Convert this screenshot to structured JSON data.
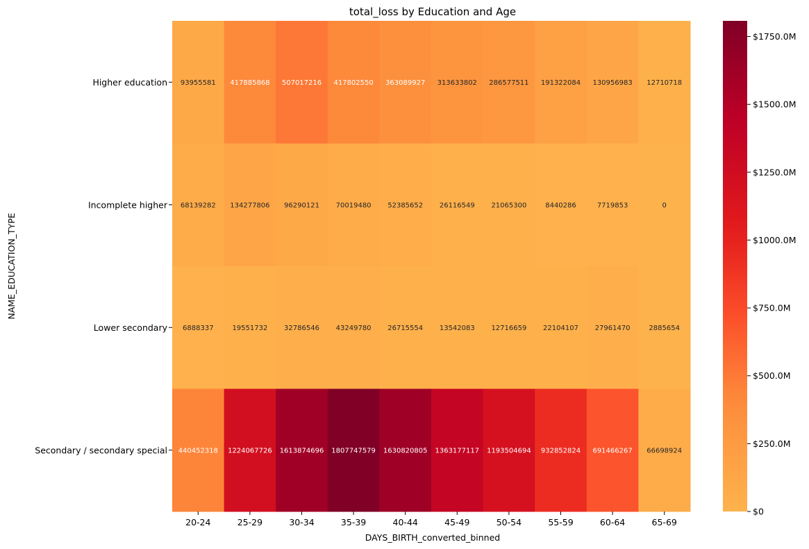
{
  "chart_data": {
    "type": "heatmap",
    "title": "total_loss by Education and Age",
    "xlabel": "DAYS_BIRTH_converted_binned",
    "ylabel": "NAME_EDUCATION_TYPE",
    "x_categories": [
      "20-24",
      "25-29",
      "30-34",
      "35-39",
      "40-44",
      "45-49",
      "50-54",
      "55-59",
      "60-64",
      "65-69"
    ],
    "y_categories": [
      "Higher education",
      "Incomplete higher",
      "Lower secondary",
      "Secondary / secondary special"
    ],
    "values": [
      [
        93955581,
        417885868,
        507017216,
        417802550,
        363089927,
        313633802,
        286577511,
        191322084,
        130956983,
        12710718
      ],
      [
        68139282,
        134277806,
        96290121,
        70019480,
        52385652,
        26116549,
        21065300,
        8440286,
        7719853,
        0
      ],
      [
        6888337,
        19551732,
        32786546,
        43249780,
        26715554,
        13542083,
        12716659,
        22104107,
        27961470,
        2885654
      ],
      [
        440452318,
        1224067726,
        1613874696,
        1807747579,
        1630820805,
        1363177117,
        1193504694,
        932852824,
        691466267,
        66698924
      ]
    ],
    "colormap": "YlOrRd",
    "color_range": [
      0,
      1807747579
    ],
    "colorbar": {
      "ticks": [
        0,
        250000000,
        500000000,
        750000000,
        1000000000,
        1250000000,
        1500000000,
        1750000000
      ],
      "tick_labels": [
        "$0",
        "$250.0M",
        "$500.0M",
        "$750.0M",
        "$1000.0M",
        "$1250.0M",
        "$1500.0M",
        "$1750.0M"
      ]
    }
  }
}
